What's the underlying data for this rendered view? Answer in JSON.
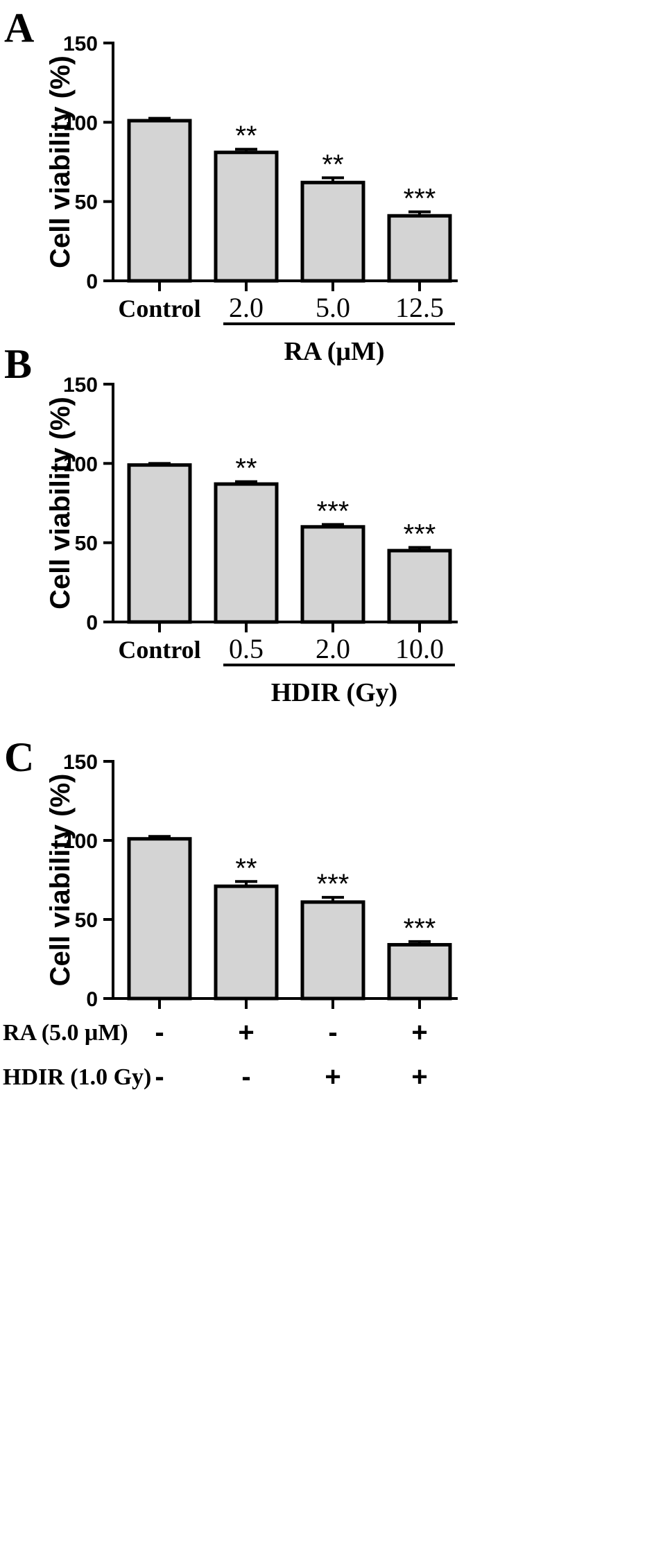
{
  "chart_data": [
    {
      "type": "bar",
      "panel_label": "A",
      "ylabel": "Cell viability (%)",
      "ylim": [
        0,
        150
      ],
      "yticks": [
        "0",
        "50",
        "100",
        "150"
      ],
      "categories": [
        "Control",
        "2.0",
        "5.0",
        "12.5"
      ],
      "values": [
        101,
        81,
        62,
        41
      ],
      "errors": [
        1.5,
        2,
        3,
        2.5
      ],
      "significance": [
        "",
        "**",
        "**",
        "***"
      ],
      "group_label": "RA (μM)"
    },
    {
      "type": "bar",
      "panel_label": "B",
      "ylabel": "Cell viability (%)",
      "ylim": [
        0,
        150
      ],
      "yticks": [
        "0",
        "50",
        "100",
        "150"
      ],
      "categories": [
        "Control",
        "0.5",
        "2.0",
        "10.0"
      ],
      "values": [
        99,
        87,
        60,
        45
      ],
      "errors": [
        1,
        1.5,
        1.5,
        2
      ],
      "significance": [
        "",
        "**",
        "***",
        "***"
      ],
      "group_label": "HDIR (Gy)"
    },
    {
      "type": "bar",
      "panel_label": "C",
      "ylabel": "Cell viability (%)",
      "ylim": [
        0,
        150
      ],
      "yticks": [
        "0",
        "50",
        "100",
        "150"
      ],
      "values": [
        101,
        71,
        61,
        34
      ],
      "errors": [
        1.5,
        3,
        3,
        2
      ],
      "significance": [
        "",
        "**",
        "***",
        "***"
      ],
      "rows": [
        {
          "label": "RA (5.0 μM)",
          "signs": [
            "-",
            "+",
            "-",
            "+"
          ]
        },
        {
          "label": "HDIR (1.0 Gy)",
          "signs": [
            "-",
            "-",
            "+",
            "+"
          ]
        }
      ]
    }
  ]
}
